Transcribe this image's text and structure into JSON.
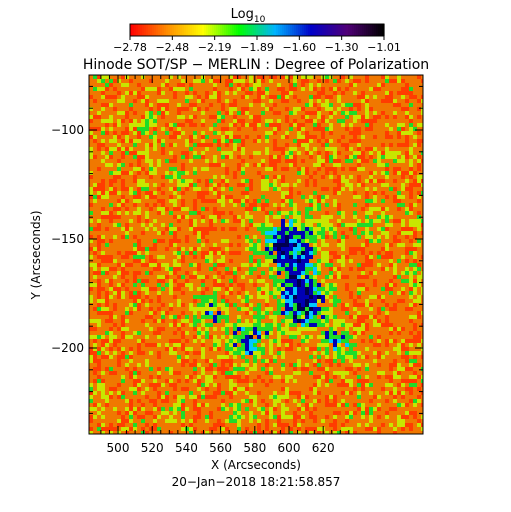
{
  "colorbar": {
    "title": "Log",
    "title_subscript": "10",
    "tick_labels": [
      "−2.78",
      "−2.48",
      "−2.19",
      "−1.89",
      "−1.60",
      "−1.30",
      "−1.01"
    ],
    "range": [
      -2.78,
      -1.01
    ],
    "colors": [
      "#ff0000",
      "#ff8c00",
      "#ffff00",
      "#00ff00",
      "#00b4ff",
      "#0000c8",
      "#500078",
      "#000000"
    ]
  },
  "title": "Hinode SOT/SP − MERLIN : Degree of Polarization",
  "x_axis": {
    "label": "X (Arcseconds)",
    "tick_labels": [
      "500",
      "520",
      "540",
      "560",
      "580",
      "600",
      "620"
    ]
  },
  "y_axis": {
    "label": "Y (Arcseconds)",
    "tick_labels": [
      "−100",
      "−150",
      "−200"
    ]
  },
  "timestamp": "20−Jan−2018 18:21:58.857",
  "map_colors": {
    "background_orange": "#f07800",
    "orange_red": "#ff3c00",
    "yellow_green": "#c8e600",
    "green": "#1edc28",
    "cyan": "#00c8ff",
    "blue": "#0000b4",
    "dark_blue": "#000050"
  }
}
